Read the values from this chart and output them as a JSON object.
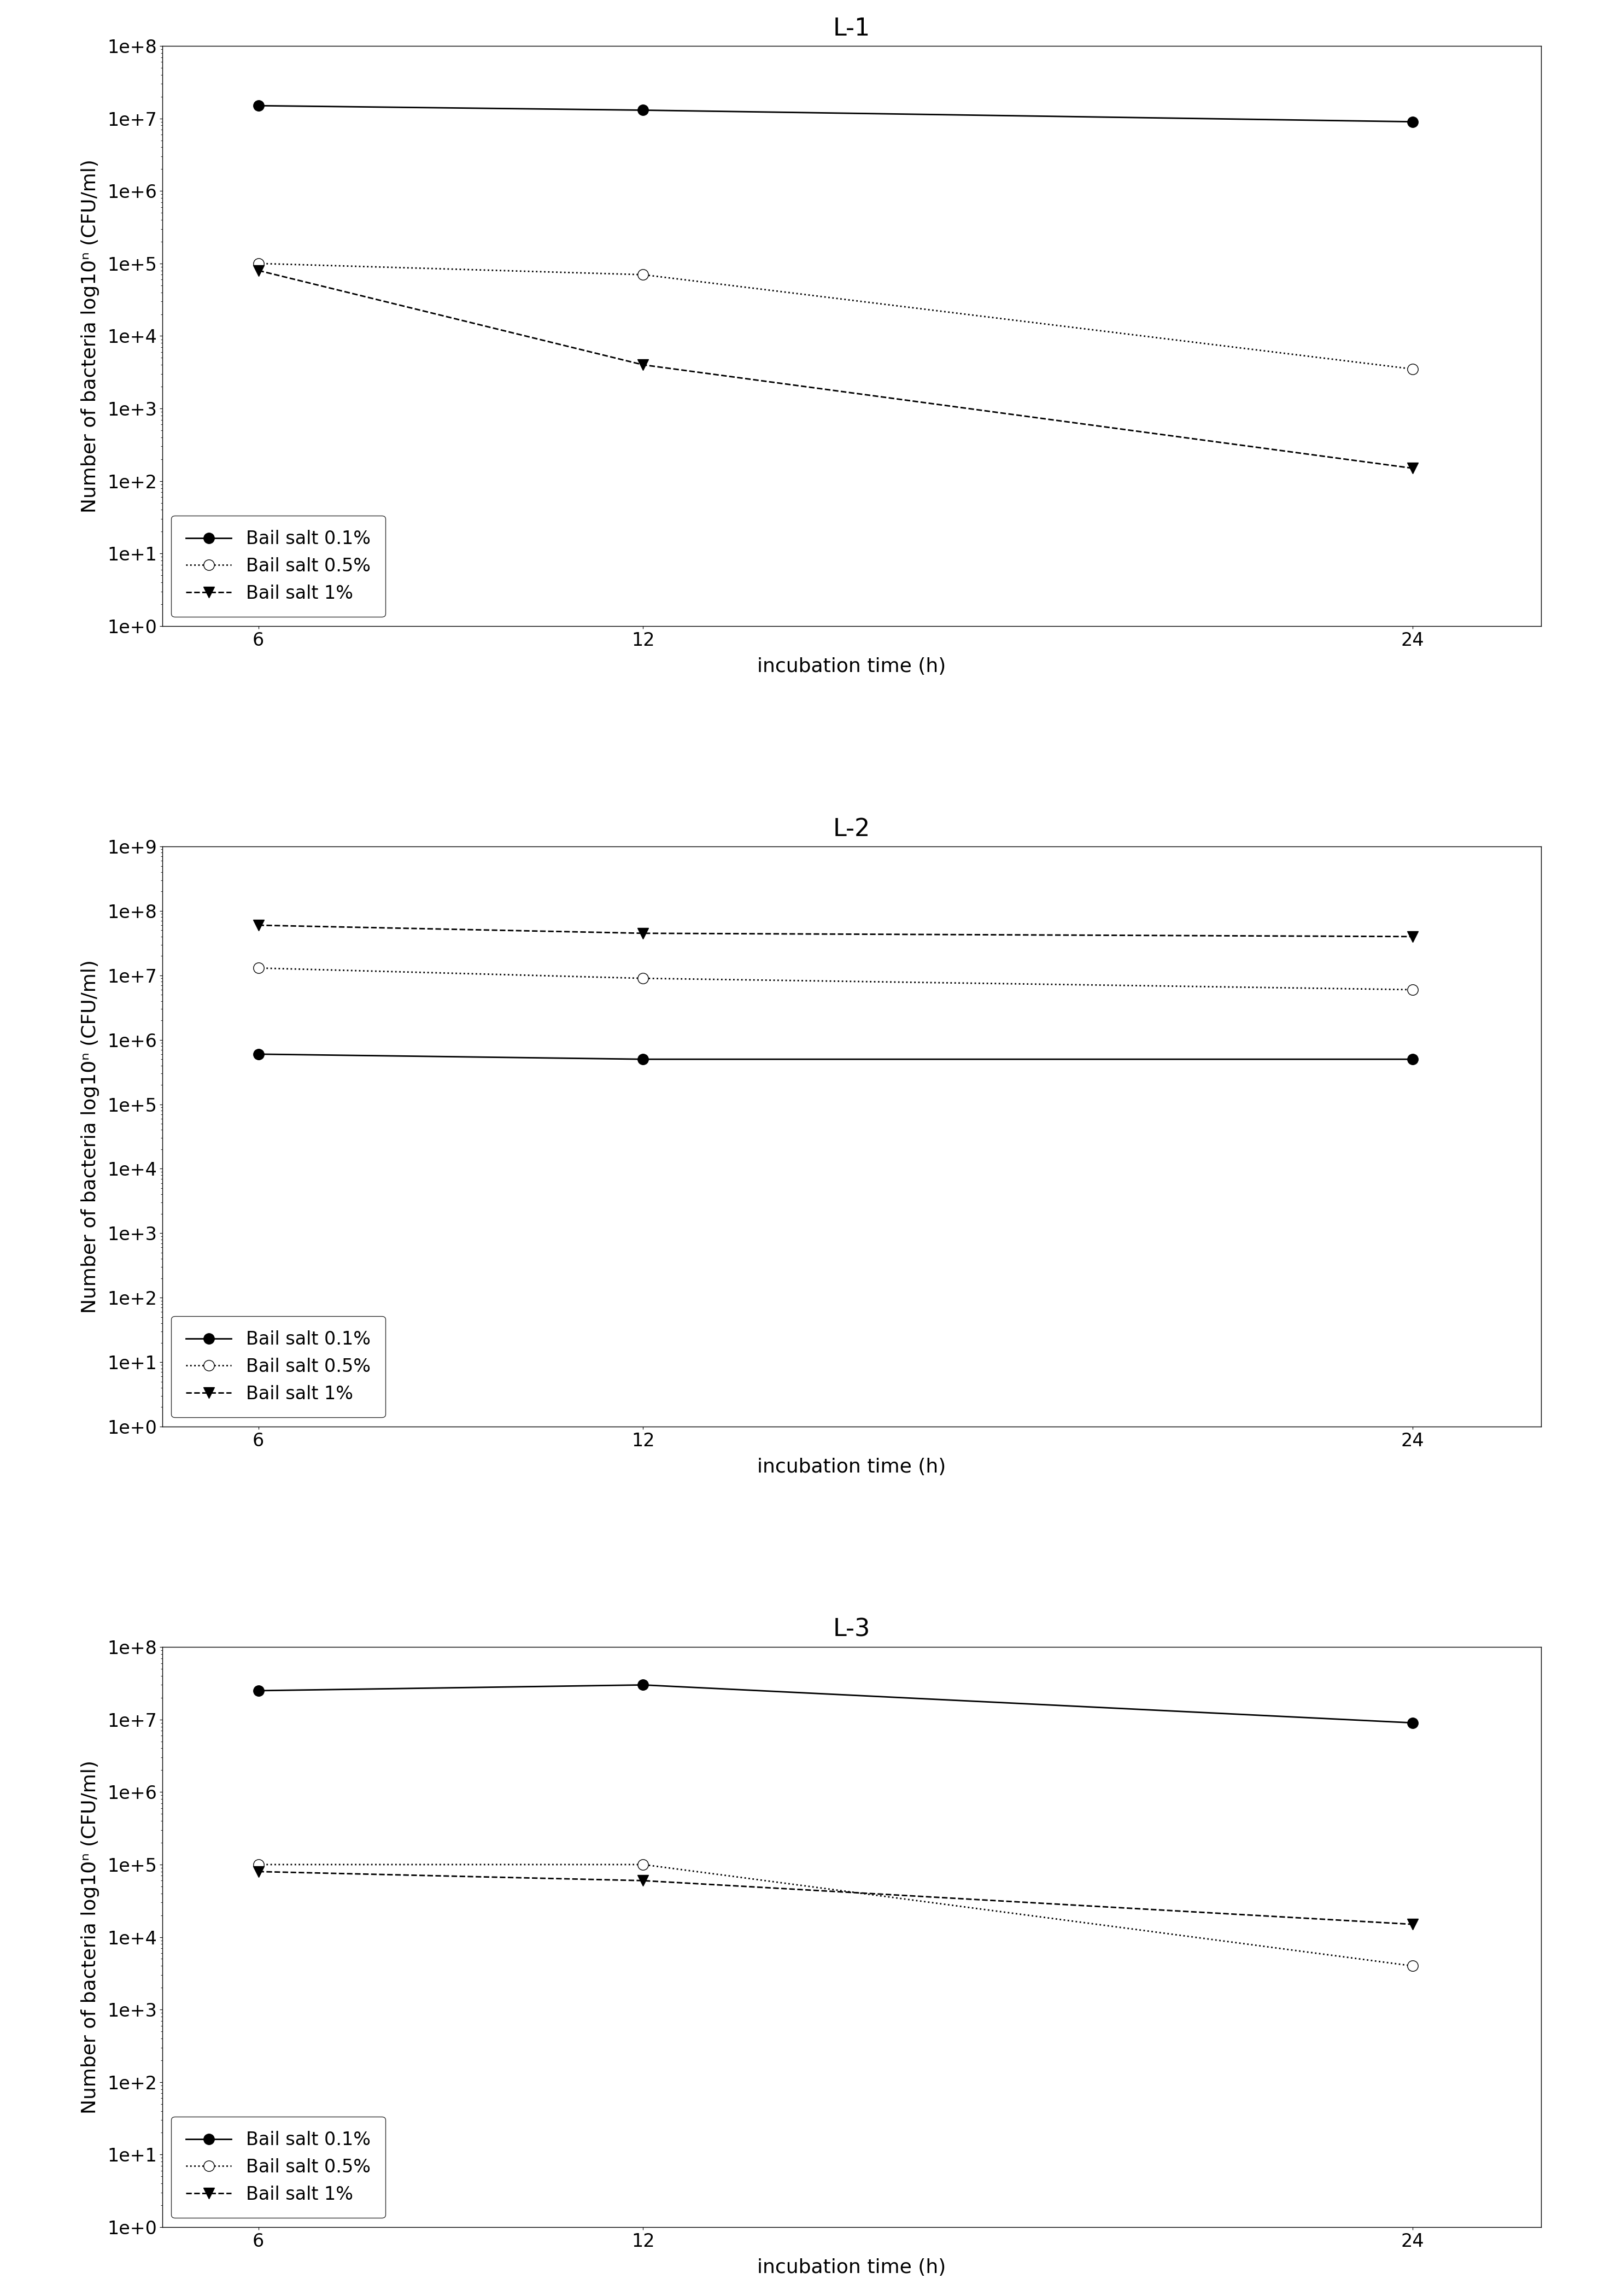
{
  "x": [
    6,
    12,
    24
  ],
  "charts": [
    {
      "title": "L-1",
      "ylim": [
        1.0,
        100000000.0
      ],
      "yticks": [
        1.0,
        10.0,
        100.0,
        1000.0,
        10000.0,
        100000.0,
        1000000.0,
        10000000.0,
        100000000.0
      ],
      "ytick_labels": [
        "1e+0",
        "1e+1",
        "1e+2",
        "1e+3",
        "1e+4",
        "1e+5",
        "1e+6",
        "1e+7",
        "1e+8"
      ],
      "series": [
        {
          "label": "Bail salt 0.1%",
          "y": [
            15000000.0,
            13000000.0,
            9000000.0
          ],
          "linestyle": "-",
          "marker": "o",
          "markerfacecolor": "black",
          "markeredgecolor": "black",
          "color": "black"
        },
        {
          "label": "Bail salt 0.5%",
          "y": [
            100000.0,
            70000.0,
            3500.0
          ],
          "linestyle": ":",
          "marker": "o",
          "markerfacecolor": "white",
          "markeredgecolor": "black",
          "color": "black"
        },
        {
          "label": "Bail salt 1%",
          "y": [
            80000.0,
            4000.0,
            150.0
          ],
          "linestyle": "--",
          "marker": "v",
          "markerfacecolor": "black",
          "markeredgecolor": "black",
          "color": "black"
        }
      ]
    },
    {
      "title": "L-2",
      "ylim": [
        1.0,
        1000000000.0
      ],
      "yticks": [
        1.0,
        10.0,
        100.0,
        1000.0,
        10000.0,
        100000.0,
        1000000.0,
        10000000.0,
        100000000.0,
        1000000000.0
      ],
      "ytick_labels": [
        "1e+0",
        "1e+1",
        "1e+2",
        "1e+3",
        "1e+4",
        "1e+5",
        "1e+6",
        "1e+7",
        "1e+8",
        "1e+9"
      ],
      "series": [
        {
          "label": "Bail salt 0.1%",
          "y": [
            600000.0,
            500000.0,
            500000.0
          ],
          "linestyle": "-",
          "marker": "o",
          "markerfacecolor": "black",
          "markeredgecolor": "black",
          "color": "black"
        },
        {
          "label": "Bail salt 0.5%",
          "y": [
            13000000.0,
            9000000.0,
            6000000.0
          ],
          "linestyle": ":",
          "marker": "o",
          "markerfacecolor": "white",
          "markeredgecolor": "black",
          "color": "black"
        },
        {
          "label": "Bail salt 1%",
          "y": [
            60000000.0,
            45000000.0,
            40000000.0
          ],
          "linestyle": "--",
          "marker": "v",
          "markerfacecolor": "black",
          "markeredgecolor": "black",
          "color": "black"
        }
      ]
    },
    {
      "title": "L-3",
      "ylim": [
        1.0,
        100000000.0
      ],
      "yticks": [
        1.0,
        10.0,
        100.0,
        1000.0,
        10000.0,
        100000.0,
        1000000.0,
        10000000.0,
        100000000.0
      ],
      "ytick_labels": [
        "1e+0",
        "1e+1",
        "1e+2",
        "1e+3",
        "1e+4",
        "1e+5",
        "1e+6",
        "1e+7",
        "1e+8"
      ],
      "series": [
        {
          "label": "Bail salt 0.1%",
          "y": [
            25000000.0,
            30000000.0,
            9000000.0
          ],
          "linestyle": "-",
          "marker": "o",
          "markerfacecolor": "black",
          "markeredgecolor": "black",
          "color": "black"
        },
        {
          "label": "Bail salt 0.5%",
          "y": [
            100000.0,
            100000.0,
            4000.0
          ],
          "linestyle": ":",
          "marker": "o",
          "markerfacecolor": "white",
          "markeredgecolor": "black",
          "color": "black"
        },
        {
          "label": "Bail salt 1%",
          "y": [
            80000.0,
            60000.0,
            15000.0
          ],
          "linestyle": "--",
          "marker": "v",
          "markerfacecolor": "black",
          "markeredgecolor": "black",
          "color": "black"
        }
      ]
    }
  ],
  "xlabel": "incubation time (h)",
  "ylabel": "Number of bacteria log10ⁿ (CFU/ml)",
  "xticks": [
    6,
    12,
    24
  ],
  "background_color": "#ffffff",
  "legend_loc": "lower left",
  "title_fontsize": 32,
  "label_fontsize": 26,
  "tick_fontsize": 24,
  "legend_fontsize": 24,
  "linewidth": 2.0,
  "markersize": 14
}
